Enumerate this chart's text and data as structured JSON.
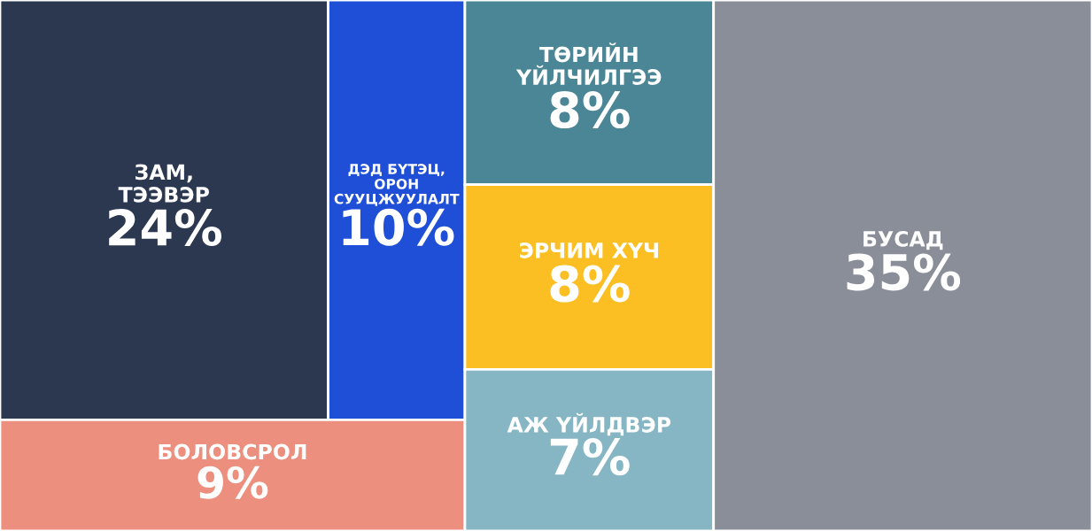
{
  "chart_data": {
    "type": "other",
    "categories": [
      "ЗАМ,\nТЭЭВЭР",
      "ДЭД БҮТЭЦ,\nОРОН\nСУУЦЖУУЛАЛТ",
      "БОЛОВСРОЛ",
      "ТӨРИЙН\nҮЙЛЧИЛГЭЭ",
      "ЭРЧИМ ХҮЧ",
      "АЖ ҮЙЛДВЭР",
      "БУСАД"
    ],
    "values": [
      24,
      10,
      9,
      8,
      8,
      7,
      35
    ],
    "value_labels": [
      "24%",
      "10%",
      "9%",
      "8%",
      "8%",
      "7%",
      "35%"
    ],
    "colors": [
      "#2b3850",
      "#1f4fd6",
      "#ec8f7e",
      "#4b8696",
      "#fbbf24",
      "#86b5c4",
      "#8a8e99"
    ]
  }
}
